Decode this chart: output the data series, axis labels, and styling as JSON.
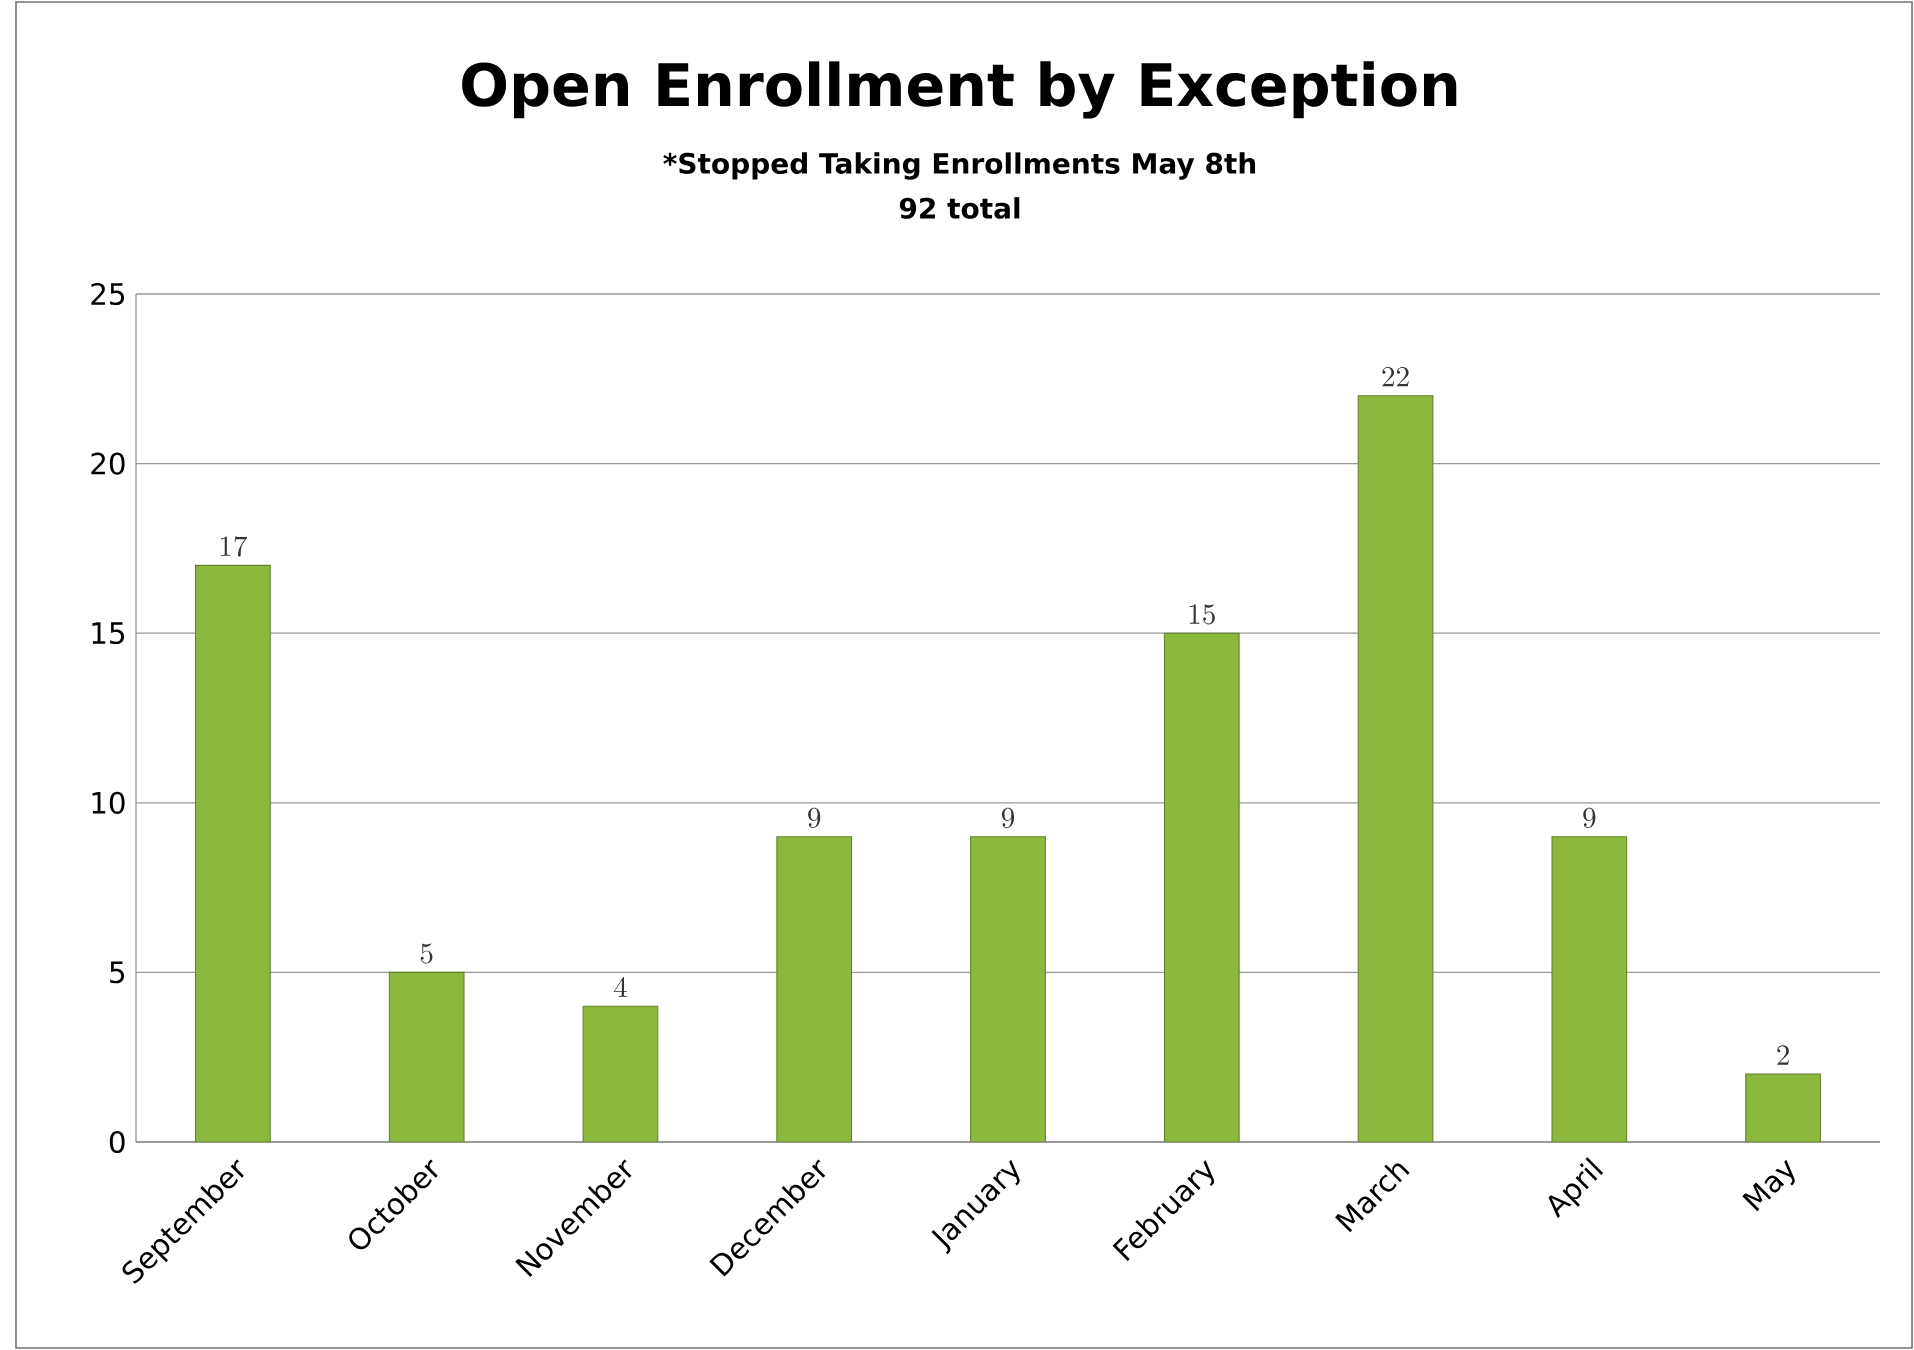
{
  "chart_data": {
    "type": "bar",
    "title": "Open Enrollment by Exception",
    "subtitle": "*Stopped Taking Enrollments May 8th",
    "annotations": [
      "92 total"
    ],
    "categories": [
      "September",
      "October",
      "November",
      "December",
      "January",
      "February",
      "March",
      "April",
      "May"
    ],
    "values": [
      17,
      5,
      4,
      9,
      9,
      15,
      22,
      9,
      2
    ],
    "color": "#8db83e",
    "ylim": [
      0,
      25
    ],
    "yticks": [
      0,
      5,
      10,
      15,
      20,
      25
    ],
    "grid": "y",
    "data_labels": true
  }
}
